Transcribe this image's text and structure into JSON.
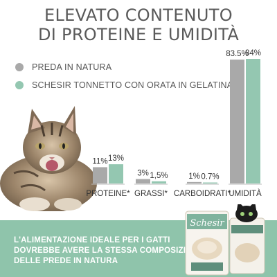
{
  "title": {
    "line1": "ELEVATO CONTENUTO",
    "line2": "DI PROTEINE E UMIDITÀ"
  },
  "legend": [
    {
      "label": "PREDA IN NATURA",
      "color": "#a9a9a9"
    },
    {
      "label": "SCHESIR TONNETTO CON ORATA IN GELATINA",
      "color": "#94c7b1"
    }
  ],
  "chart_data": {
    "type": "bar",
    "categories": [
      "PROTEINE*",
      "GRASSI*",
      "CARBOIDRATI*",
      "UMIDITÀ"
    ],
    "series": [
      {
        "name": "PREDA IN NATURA",
        "values": [
          11,
          3,
          1,
          83.5
        ],
        "labels": [
          "11%",
          "3%",
          "1%",
          "83.5%"
        ]
      },
      {
        "name": "SCHESIR TONNETTO CON ORATA IN GELATINA",
        "values": [
          13,
          1.5,
          0.7,
          84
        ],
        "labels": [
          "13%",
          "1,5%",
          "0.7%",
          "84%"
        ]
      }
    ],
    "ylim": [
      0,
      84
    ],
    "grid": false
  },
  "banner": {
    "line1": "L'ALIMENTAZIONE IDEALE PER I GATTI",
    "line2": "DOVREBBE AVERE LA STESSA COMPOSIZIONE",
    "line3": "DELLE PREDE IN NATURA",
    "background": "#8fc4ab"
  },
  "product": {
    "brand": "Schesir"
  }
}
